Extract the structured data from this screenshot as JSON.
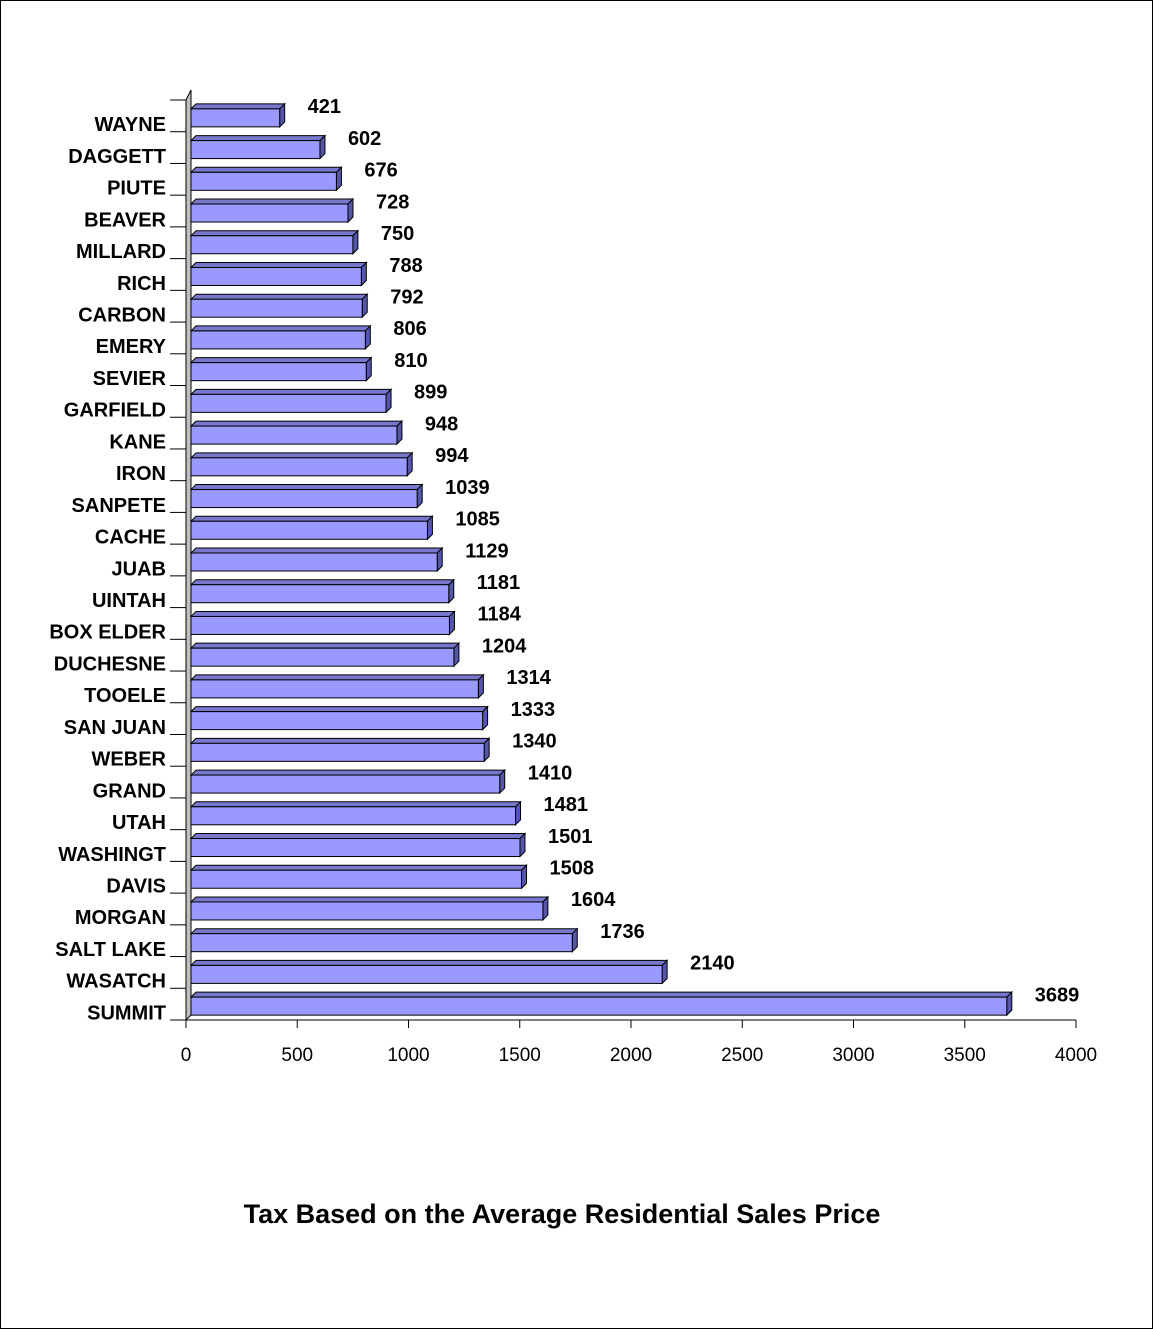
{
  "chart_data": {
    "type": "bar",
    "orientation": "horizontal",
    "title": "Tax Based on the Average Residential Sales Price",
    "categories": [
      "WAYNE",
      "DAGGETT",
      "PIUTE",
      "BEAVER",
      "MILLARD",
      "RICH",
      "CARBON",
      "EMERY",
      "SEVIER",
      "GARFIELD",
      "KANE",
      "IRON",
      "SANPETE",
      "CACHE",
      "JUAB",
      "UINTAH",
      "BOX ELDER",
      "DUCHESNE",
      "TOOELE",
      "SAN JUAN",
      "WEBER",
      "GRAND",
      "UTAH",
      "WASHINGT",
      "DAVIS",
      "MORGAN",
      "SALT LAKE",
      "WASATCH",
      "SUMMIT"
    ],
    "values": [
      421,
      602,
      676,
      728,
      750,
      788,
      792,
      806,
      810,
      899,
      948,
      994,
      1039,
      1085,
      1129,
      1181,
      1184,
      1204,
      1314,
      1333,
      1340,
      1410,
      1481,
      1501,
      1508,
      1604,
      1736,
      2140,
      3689
    ],
    "color": "#9999ff",
    "xlim": [
      0,
      4000
    ],
    "xticks": [
      0,
      500,
      1000,
      1500,
      2000,
      2500,
      3000,
      3500,
      4000
    ]
  }
}
